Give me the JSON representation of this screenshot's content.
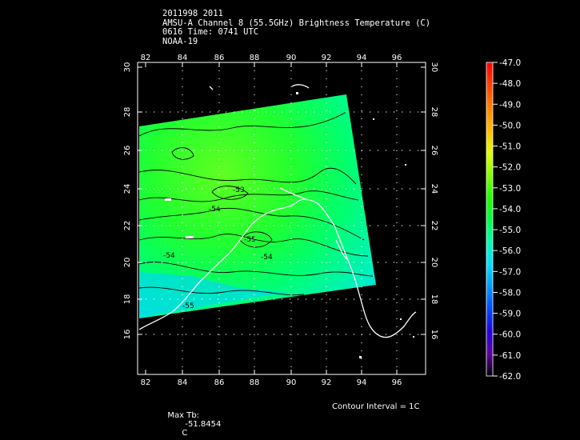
{
  "header": {
    "line1": "2011998 2011",
    "line2": "AMSU-A Channel 8 (55.5GHz) Brightness Temperature (C)",
    "line3": "0616 Time: 0741 UTC",
    "line4": "NOAA-19"
  },
  "axes": {
    "lon_ticks": [
      "82",
      "84",
      "86",
      "88",
      "90",
      "92",
      "94",
      "96"
    ],
    "lat_ticks": [
      "16",
      "18",
      "20",
      "22",
      "24",
      "26",
      "28",
      "30"
    ]
  },
  "colorbar": {
    "labels": [
      "-47.0",
      "-48.0",
      "-49.0",
      "-50.0",
      "-51.0",
      "-52.0",
      "-53.0",
      "-54.0",
      "-55.0",
      "-56.0",
      "-57.0",
      "-58.0",
      "-59.0",
      "-60.0",
      "-61.0",
      "-62.0"
    ],
    "colors": [
      "#ff0000",
      "#ff4000",
      "#ff8000",
      "#ffc000",
      "#e0ff00",
      "#80ff00",
      "#20ff00",
      "#00ff40",
      "#00ffb0",
      "#00e0ff",
      "#00a0ff",
      "#0050ff",
      "#2000e0",
      "#6000a0",
      "#400060",
      "#200030"
    ]
  },
  "contour_labels": [
    "-53",
    "-54",
    "-54",
    "-55",
    "-54",
    "-55"
  ],
  "footer": {
    "max_tb_label": "Max Tb:",
    "max_tb_value": "-51.8454",
    "max_tb_unit": "C",
    "contour_interval": "Contour Interval = 1C"
  }
}
